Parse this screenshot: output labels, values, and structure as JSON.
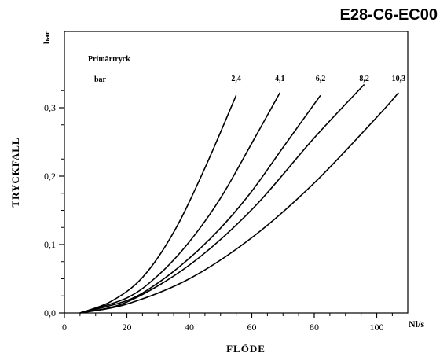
{
  "title": "E28-C6-EC00",
  "chart_data": {
    "type": "line",
    "title": "",
    "ylabel": "TRYCKFALL",
    "yunit": "bar",
    "xlabel": "FLÖDE",
    "xunit": "Nl/s",
    "legend_title": "Primärtryck",
    "legend_unit": "bar",
    "xlim": [
      0,
      112
    ],
    "ylim": [
      0,
      0.35
    ],
    "xticks": [
      "0",
      "20",
      "40",
      "60",
      "80",
      "100"
    ],
    "xtick_values": [
      0,
      20,
      40,
      60,
      80,
      100
    ],
    "yticks": [
      "0,0",
      "0,1",
      "0,2",
      "0,3"
    ],
    "ytick_values": [
      0,
      0.1,
      0.2,
      0.3
    ],
    "grid": false,
    "series": [
      {
        "name": "2,4",
        "x": [
          5,
          15,
          25,
          35,
          45,
          55
        ],
        "y": [
          0.0,
          0.017,
          0.052,
          0.118,
          0.212,
          0.318
        ]
      },
      {
        "name": "4,1",
        "x": [
          5,
          20,
          30,
          40,
          50,
          60,
          69
        ],
        "y": [
          0.0,
          0.022,
          0.055,
          0.104,
          0.168,
          0.248,
          0.322
        ]
      },
      {
        "name": "6,2",
        "x": [
          5,
          20,
          30,
          40,
          50,
          60,
          70,
          82
        ],
        "y": [
          0.0,
          0.018,
          0.044,
          0.08,
          0.124,
          0.178,
          0.242,
          0.318
        ]
      },
      {
        "name": "8,2",
        "x": [
          5,
          20,
          40,
          60,
          80,
          96
        ],
        "y": [
          0.0,
          0.016,
          0.07,
          0.151,
          0.256,
          0.334
        ]
      },
      {
        "name": "10,3",
        "x": [
          5,
          20,
          40,
          60,
          80,
          100,
          107
        ],
        "y": [
          0.0,
          0.013,
          0.05,
          0.11,
          0.19,
          0.286,
          0.322
        ]
      }
    ]
  }
}
